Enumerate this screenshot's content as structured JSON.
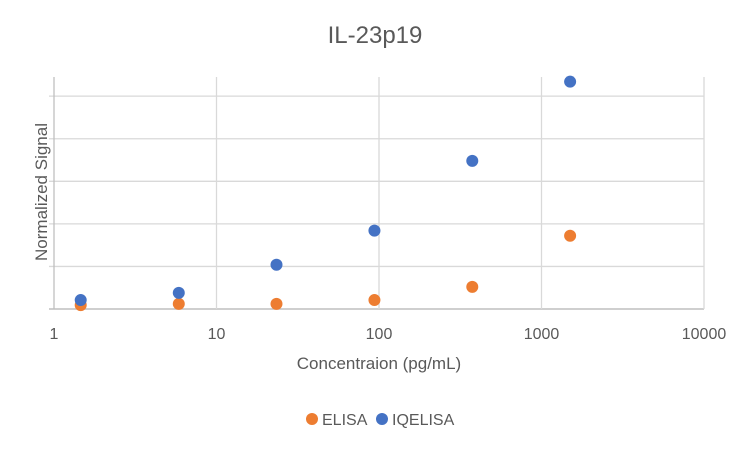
{
  "chart_data": {
    "type": "scatter",
    "title": "IL-23p19",
    "xlabel": "Concentraion (pg/mL)",
    "ylabel": "Normalized Signal",
    "x_scale": "log",
    "xlim": [
      1,
      10000
    ],
    "x_ticks": [
      "1",
      "10",
      "100",
      "1000",
      "10000"
    ],
    "ylim": [
      0,
      5.45
    ],
    "y_gridlines": [
      0,
      1,
      2,
      3,
      4,
      5
    ],
    "y_tick_labels_shown": false,
    "grid": true,
    "legend_position": "bottom",
    "series": [
      {
        "name": "ELISA",
        "color": "#ED7D31",
        "x": [
          1.46,
          5.86,
          23.4,
          93.75,
          375,
          1500
        ],
        "y": [
          0.09,
          0.12,
          0.12,
          0.21,
          0.52,
          1.72
        ]
      },
      {
        "name": "IQELISA",
        "color": "#4472C4",
        "x": [
          1.46,
          5.86,
          23.4,
          93.75,
          375,
          1500
        ],
        "y": [
          0.21,
          0.38,
          1.04,
          1.84,
          3.48,
          5.34
        ]
      }
    ]
  }
}
